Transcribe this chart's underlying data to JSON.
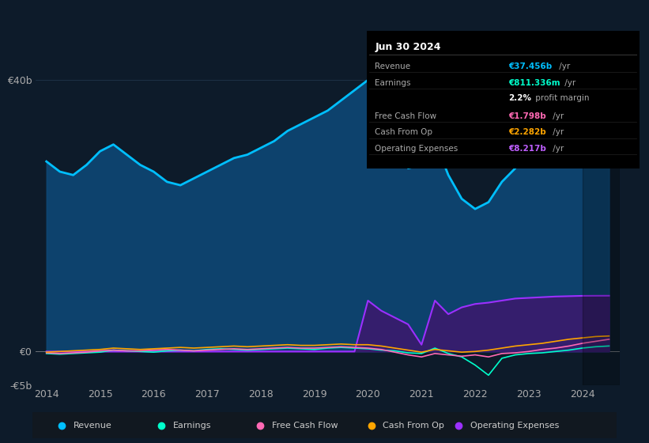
{
  "bg_color": "#0d1b2a",
  "plot_bg_color": "#0d1b2a",
  "grid_color": "#1e3a5f",
  "title_box": {
    "date": "Jun 30 2024",
    "rows": [
      {
        "label": "Revenue",
        "value": "€37.456b",
        "unit": "/yr",
        "value_color": "#00bfff"
      },
      {
        "label": "Earnings",
        "value": "€811.336m",
        "unit": "/yr",
        "value_color": "#00ffcc"
      },
      {
        "label": "",
        "value": "2.2%",
        "unit": " profit margin",
        "value_color": "#ffffff"
      },
      {
        "label": "Free Cash Flow",
        "value": "€1.798b",
        "unit": "/yr",
        "value_color": "#ff69b4"
      },
      {
        "label": "Cash From Op",
        "value": "€2.282b",
        "unit": "/yr",
        "value_color": "#ffa500"
      },
      {
        "label": "Operating Expenses",
        "value": "€8.217b",
        "unit": "/yr",
        "value_color": "#bf5fff"
      }
    ]
  },
  "years": [
    2014.0,
    2014.25,
    2014.5,
    2014.75,
    2015.0,
    2015.25,
    2015.5,
    2015.75,
    2016.0,
    2016.25,
    2016.5,
    2016.75,
    2017.0,
    2017.25,
    2017.5,
    2017.75,
    2018.0,
    2018.25,
    2018.5,
    2018.75,
    2019.0,
    2019.25,
    2019.5,
    2019.75,
    2020.0,
    2020.25,
    2020.5,
    2020.75,
    2021.0,
    2021.25,
    2021.5,
    2021.75,
    2022.0,
    2022.25,
    2022.5,
    2022.75,
    2023.0,
    2023.25,
    2023.5,
    2023.75,
    2024.0,
    2024.25,
    2024.5
  ],
  "revenue": [
    28.0,
    26.5,
    26.0,
    27.5,
    29.5,
    30.5,
    29.0,
    27.5,
    26.5,
    25.0,
    24.5,
    25.5,
    26.5,
    27.5,
    28.5,
    29.0,
    30.0,
    31.0,
    32.5,
    33.5,
    34.5,
    35.5,
    37.0,
    38.5,
    40.0,
    38.5,
    33.0,
    27.0,
    27.5,
    31.0,
    26.0,
    22.5,
    21.0,
    22.0,
    25.0,
    27.0,
    29.5,
    31.5,
    33.0,
    35.0,
    36.5,
    37.5,
    37.456
  ],
  "earnings": [
    -0.3,
    -0.4,
    -0.3,
    -0.2,
    -0.1,
    0.2,
    0.1,
    0.0,
    -0.1,
    0.1,
    0.2,
    0.1,
    0.3,
    0.4,
    0.3,
    0.2,
    0.3,
    0.4,
    0.5,
    0.4,
    0.3,
    0.5,
    0.6,
    0.5,
    0.4,
    0.2,
    0.1,
    -0.2,
    -0.3,
    0.5,
    -0.3,
    -0.8,
    -2.0,
    -3.5,
    -1.0,
    -0.5,
    -0.3,
    -0.2,
    0.0,
    0.2,
    0.5,
    0.7,
    0.811
  ],
  "free_cash_flow": [
    -0.2,
    -0.3,
    -0.2,
    -0.1,
    0.1,
    0.2,
    0.1,
    0.1,
    0.2,
    0.3,
    0.2,
    0.1,
    0.2,
    0.3,
    0.4,
    0.3,
    0.4,
    0.5,
    0.6,
    0.5,
    0.5,
    0.6,
    0.7,
    0.6,
    0.5,
    0.3,
    -0.1,
    -0.5,
    -0.8,
    -0.3,
    -0.5,
    -0.7,
    -0.5,
    -0.8,
    -0.3,
    -0.2,
    0.0,
    0.3,
    0.5,
    0.8,
    1.2,
    1.5,
    1.798
  ],
  "cash_from_op": [
    -0.1,
    0.0,
    0.1,
    0.2,
    0.3,
    0.5,
    0.4,
    0.3,
    0.4,
    0.5,
    0.6,
    0.5,
    0.6,
    0.7,
    0.8,
    0.7,
    0.8,
    0.9,
    1.0,
    0.9,
    0.9,
    1.0,
    1.1,
    1.0,
    1.0,
    0.8,
    0.5,
    0.2,
    -0.1,
    0.3,
    0.1,
    -0.1,
    0.0,
    0.2,
    0.5,
    0.8,
    1.0,
    1.2,
    1.5,
    1.8,
    2.0,
    2.2,
    2.282
  ],
  "operating_expenses": [
    0.0,
    0.0,
    0.0,
    0.0,
    0.0,
    0.0,
    0.0,
    0.0,
    0.0,
    0.0,
    0.0,
    0.0,
    0.0,
    0.0,
    0.0,
    0.0,
    0.0,
    0.0,
    0.0,
    0.0,
    0.0,
    0.0,
    0.0,
    0.0,
    7.5,
    6.0,
    5.0,
    4.0,
    1.0,
    7.5,
    5.5,
    6.5,
    7.0,
    7.2,
    7.5,
    7.8,
    7.9,
    8.0,
    8.1,
    8.15,
    8.2,
    8.21,
    8.217
  ],
  "ylim": [
    -5,
    42
  ],
  "yticks": [
    -5,
    0,
    40
  ],
  "ytick_labels": [
    "-€5b",
    "€0",
    "€40b"
  ],
  "xticks": [
    2014,
    2015,
    2016,
    2017,
    2018,
    2019,
    2020,
    2021,
    2022,
    2023,
    2024
  ],
  "revenue_color": "#00bfff",
  "revenue_fill_color": "#0d4a7a",
  "earnings_color": "#00ffcc",
  "fcf_color": "#ff69b4",
  "cashop_color": "#ffa500",
  "opex_color": "#9b30ff",
  "opex_fill_color": "#3a1a6e",
  "legend_items": [
    {
      "label": "Revenue",
      "color": "#00bfff"
    },
    {
      "label": "Earnings",
      "color": "#00ffcc"
    },
    {
      "label": "Free Cash Flow",
      "color": "#ff69b4"
    },
    {
      "label": "Cash From Op",
      "color": "#ffa500"
    },
    {
      "label": "Operating Expenses",
      "color": "#9b30ff"
    }
  ]
}
